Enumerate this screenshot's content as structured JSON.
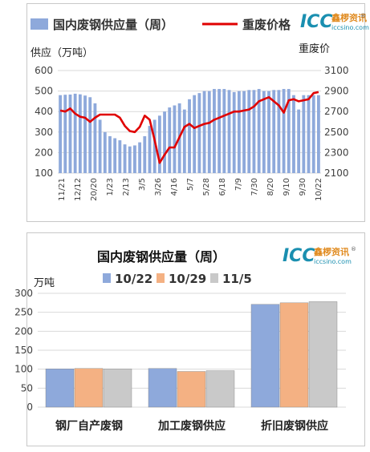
{
  "brand": {
    "logo": "ICC",
    "name_cn": "鑫椤资讯",
    "url": "iccsino.com",
    "reg": "®"
  },
  "colors": {
    "bar_blue": "#8ea9db",
    "line_red": "#e00000",
    "bar_orange": "#f4b183",
    "bar_gray": "#c9c9c9",
    "grid": "#d9d9d9"
  },
  "chart_data": [
    {
      "type": "bar+line",
      "legend": [
        "国内废钢供应量（周）",
        "重废价格"
      ],
      "ylabel_left": "供应（万吨）",
      "ylabel_right": "重废价",
      "ylim_left": [
        100,
        600
      ],
      "yticks_left": [
        100,
        200,
        300,
        400,
        500,
        600
      ],
      "ylim_right": [
        2100,
        3100
      ],
      "yticks_right": [
        2100,
        2300,
        2500,
        2700,
        2900,
        3100
      ],
      "grid": true,
      "x_tick_labels": [
        "11/21",
        "12/12",
        "20/20",
        "1/23",
        "2/13",
        "3/5",
        "3/26",
        "4/16",
        "5/7",
        "5/28",
        "6/18",
        "7/9",
        "7/30",
        "8/20",
        "9/10",
        "9/30",
        "10/22"
      ],
      "supply_weekly": [
        480,
        482,
        483,
        487,
        484,
        478,
        470,
        440,
        360,
        300,
        280,
        270,
        260,
        240,
        230,
        235,
        250,
        280,
        330,
        360,
        380,
        400,
        420,
        430,
        440,
        410,
        460,
        480,
        490,
        500,
        500,
        510,
        510,
        510,
        505,
        495,
        500,
        500,
        505,
        505,
        510,
        500,
        500,
        505,
        505,
        510,
        510,
        480,
        410,
        480,
        480,
        480,
        480
      ],
      "price_weekly": [
        2710,
        2700,
        2730,
        2680,
        2650,
        2640,
        2600,
        2640,
        2670,
        2670,
        2670,
        2670,
        2640,
        2560,
        2510,
        2500,
        2550,
        2660,
        2620,
        2420,
        2200,
        2280,
        2350,
        2350,
        2450,
        2550,
        2580,
        2540,
        2560,
        2580,
        2590,
        2620,
        2640,
        2660,
        2680,
        2700,
        2700,
        2710,
        2720,
        2750,
        2800,
        2820,
        2840,
        2800,
        2760,
        2690,
        2810,
        2820,
        2800,
        2810,
        2820,
        2880,
        2890
      ]
    },
    {
      "type": "bar",
      "title": "国内废钢供应量（周）",
      "ylabel": "万吨",
      "ylim": [
        0,
        300
      ],
      "yticks": [
        0,
        50,
        100,
        150,
        200,
        250,
        300
      ],
      "categories": [
        "钢厂自产废钢",
        "加工废钢供应",
        "折旧废钢供应"
      ],
      "series": [
        {
          "name": "10/22",
          "values": [
            101,
            102,
            271
          ]
        },
        {
          "name": "10/29",
          "values": [
            102,
            94,
            275
          ]
        },
        {
          "name": "11/5",
          "values": [
            101,
            96,
            278
          ]
        }
      ],
      "grid": true
    }
  ]
}
